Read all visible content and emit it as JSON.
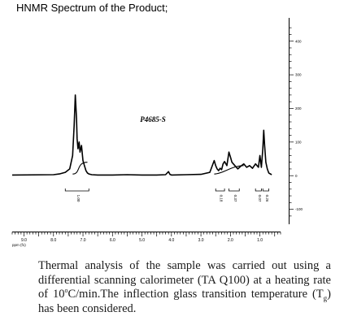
{
  "heading": "HNMR Spectrum of the Product;",
  "sample_label": "P4685-S",
  "x_axis": {
    "unit_label": "ppm (f1)",
    "ticks": [
      "9.0",
      "8.0",
      "7.0",
      "6.0",
      "5.0",
      "4.0",
      "3.0",
      "2.0",
      "1.0"
    ]
  },
  "y_axis": {
    "ticks": [
      "400",
      "300",
      "200",
      "100",
      "0",
      "-100"
    ]
  },
  "integrals": [
    "1.00",
    "0.18",
    "0.37",
    "0.07",
    "0.26"
  ],
  "caption": {
    "before_rate": "Thermal analysis of the sample was carried out using a differential scanning calorimeter (TA Q100) at a heating rate of 10",
    "degree": "o",
    "after_rate": "C/min.The inflection glass transition temperature (T",
    "subscript": "g",
    "after_subscript": ") has been considered."
  },
  "chart_data": {
    "type": "line",
    "title": "P4685-S",
    "xlabel": "ppm (f1)",
    "ylabel": "",
    "xlim": [
      9.4,
      0.3
    ],
    "ylim": [
      -130,
      450
    ],
    "series": [
      {
        "x": [
          9.4,
          8.0,
          7.8,
          7.6,
          7.45,
          7.35,
          7.3,
          7.26,
          7.22,
          7.2,
          7.17,
          7.13,
          7.1,
          7.05,
          7.0,
          6.95,
          6.9,
          6.85,
          6.8,
          6.7,
          6.5,
          6.0,
          5.5,
          5.0,
          4.5,
          4.2,
          4.1,
          4.05,
          4.0,
          3.5,
          3.0,
          2.7,
          2.55,
          2.5,
          2.45,
          2.4,
          2.35,
          2.3,
          2.25,
          2.2,
          2.12,
          2.05,
          2.0,
          1.95,
          1.85,
          1.75,
          1.65,
          1.55,
          1.45,
          1.35,
          1.25,
          1.15,
          1.05,
          1.0,
          0.95,
          0.9,
          0.87,
          0.84,
          0.8,
          0.75,
          0.7,
          0.6
        ],
        "y": [
          2,
          3,
          5,
          10,
          20,
          60,
          150,
          240,
          170,
          110,
          80,
          100,
          70,
          90,
          45,
          30,
          15,
          8,
          5,
          3,
          2,
          2,
          3,
          2,
          2,
          3,
          12,
          4,
          2,
          3,
          4,
          10,
          45,
          30,
          20,
          15,
          22,
          18,
          35,
          42,
          30,
          70,
          55,
          40,
          30,
          20,
          28,
          35,
          25,
          30,
          22,
          35,
          25,
          60,
          25,
          80,
          135,
          90,
          40,
          20,
          8,
          3
        ]
      }
    ]
  }
}
